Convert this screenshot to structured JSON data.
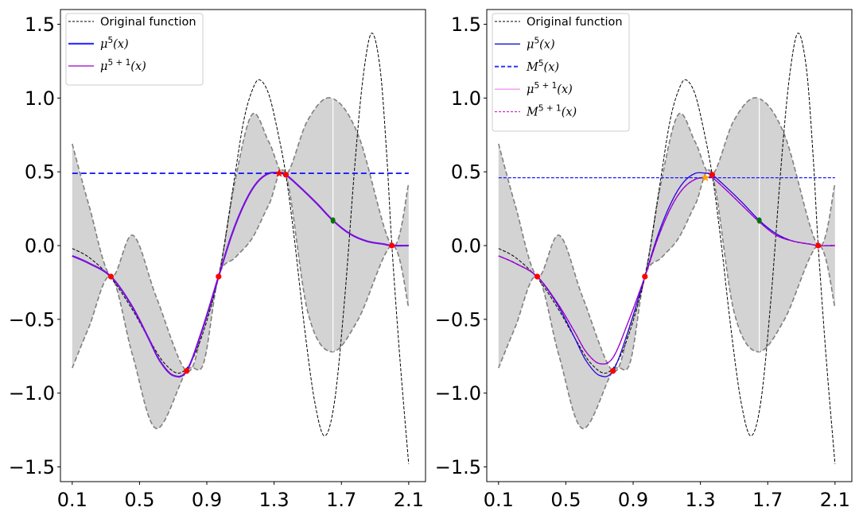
{
  "chart_data": [
    {
      "type": "line",
      "panel": "left",
      "title": "",
      "xlabel": "",
      "ylabel": "",
      "xlim": [
        0.03,
        2.2
      ],
      "ylim": [
        -1.6,
        1.6
      ],
      "xticks": [
        0.1,
        0.5,
        0.9,
        1.3,
        1.7,
        2.1
      ],
      "xtick_labels": [
        "0.1",
        "0.5",
        "0.9",
        "1.3",
        "1.7",
        "2.1"
      ],
      "yticks": [
        1.5,
        1.0,
        0.5,
        0.0,
        -0.5,
        -1.0,
        -1.5
      ],
      "ytick_labels": [
        "1.5",
        "1.0",
        "0.5",
        "0.0",
        "−0.5",
        "−1.0",
        "−1.5"
      ],
      "grid": false,
      "legend_position": "top-left",
      "legend": [
        {
          "label": "Original function",
          "base": "Original function",
          "sup": "",
          "suffix": "",
          "math": false,
          "color": "#000000",
          "style": "dashed-thin"
        },
        {
          "label": "μ5(x)",
          "base": "μ",
          "sup": "5",
          "suffix": "(x)",
          "math": true,
          "color": "#3333ff",
          "style": "solid-thick"
        },
        {
          "label": "μ5 + 1(x)",
          "base": "μ",
          "sup": "5 + 1",
          "suffix": "(x)",
          "math": true,
          "color": "#9900cc",
          "style": "solid-thin"
        }
      ],
      "band": {
        "color": "#d3d3d3",
        "edge_color": "#808080",
        "x": [
          0.1,
          0.2,
          0.33,
          0.46,
          0.6,
          0.78,
          0.88,
          0.97,
          1.07,
          1.17,
          1.27,
          1.37,
          1.5,
          1.64,
          1.8,
          2.0,
          2.1
        ],
        "upper": [
          0.69,
          0.27,
          -0.21,
          0.07,
          -0.35,
          -0.85,
          -0.55,
          -0.21,
          0.45,
          0.89,
          0.7,
          0.48,
          0.85,
          1.0,
          0.75,
          0.0,
          0.42
        ],
        "lower": [
          -0.83,
          -0.55,
          -0.21,
          -0.75,
          -1.24,
          -0.85,
          -0.8,
          -0.21,
          -0.08,
          0.05,
          0.28,
          0.48,
          -0.45,
          -0.72,
          -0.5,
          0.0,
          -0.42
        ]
      },
      "vline_x": 1.65,
      "series": [
        {
          "name": "Original function",
          "color": "#000000",
          "dash": "4,2",
          "width": 1,
          "x": [
            0.1,
            0.2,
            0.33,
            0.45,
            0.55,
            0.65,
            0.75,
            0.85,
            0.97,
            1.05,
            1.12,
            1.18,
            1.22,
            1.27,
            1.32,
            1.37,
            1.42,
            1.48,
            1.54,
            1.6,
            1.66,
            1.72,
            1.78,
            1.83,
            1.88,
            1.93,
            1.97,
            2.0,
            2.05,
            2.1
          ],
          "y": [
            -0.02,
            -0.08,
            -0.22,
            -0.42,
            -0.62,
            -0.8,
            -0.86,
            -0.68,
            -0.21,
            0.35,
            0.85,
            1.08,
            1.12,
            1.02,
            0.78,
            0.48,
            0.05,
            -0.55,
            -1.05,
            -1.29,
            -1.05,
            -0.35,
            0.55,
            1.15,
            1.44,
            1.2,
            0.6,
            0.0,
            -0.8,
            -1.48
          ]
        },
        {
          "name": "mu5",
          "color": "#3333ff",
          "dash": "",
          "width": 2.2,
          "x": [
            0.1,
            0.2,
            0.33,
            0.45,
            0.55,
            0.62,
            0.7,
            0.78,
            0.87,
            0.97,
            1.05,
            1.13,
            1.2,
            1.27,
            1.33,
            1.37,
            1.45,
            1.55,
            1.65,
            1.75,
            1.85,
            1.95,
            2.0,
            2.1
          ],
          "y": [
            -0.07,
            -0.12,
            -0.21,
            -0.4,
            -0.62,
            -0.78,
            -0.88,
            -0.85,
            -0.58,
            -0.21,
            0.08,
            0.3,
            0.43,
            0.49,
            0.49,
            0.48,
            0.4,
            0.29,
            0.17,
            0.08,
            0.03,
            0.01,
            0.0,
            0.0
          ]
        },
        {
          "name": "mu5+1",
          "color": "#9900cc",
          "dash": "",
          "width": 1.5,
          "x": [
            0.1,
            0.2,
            0.33,
            0.45,
            0.55,
            0.62,
            0.7,
            0.78,
            0.87,
            0.97,
            1.05,
            1.13,
            1.2,
            1.27,
            1.33,
            1.37,
            1.45,
            1.55,
            1.65,
            1.75,
            1.85,
            1.95,
            2.0,
            2.1
          ],
          "y": [
            -0.07,
            -0.12,
            -0.21,
            -0.4,
            -0.62,
            -0.78,
            -0.88,
            -0.85,
            -0.58,
            -0.21,
            0.08,
            0.3,
            0.43,
            0.49,
            0.49,
            0.48,
            0.4,
            0.29,
            0.17,
            0.08,
            0.03,
            0.01,
            0.0,
            0.0
          ]
        },
        {
          "name": "M5",
          "color": "#1a1aff",
          "dash": "7,4",
          "width": 1.8,
          "x": [
            0.1,
            2.1
          ],
          "y": [
            0.49,
            0.49
          ]
        }
      ],
      "observations": {
        "color": "#ff0000",
        "x": [
          0.33,
          0.78,
          0.97,
          1.37,
          2.0
        ],
        "y": [
          -0.21,
          -0.85,
          -0.21,
          0.48,
          0.0
        ]
      },
      "star": {
        "color": "#ff0000",
        "x": 1.33,
        "y": 0.49
      },
      "new_point": {
        "color": "#007700",
        "x": 1.65,
        "y": 0.17
      }
    },
    {
      "type": "line",
      "panel": "right",
      "title": "",
      "xlabel": "",
      "ylabel": "",
      "xlim": [
        0.03,
        2.2
      ],
      "ylim": [
        -1.6,
        1.6
      ],
      "xticks": [
        0.1,
        0.5,
        0.9,
        1.3,
        1.7,
        2.1
      ],
      "xtick_labels": [
        "0.1",
        "0.5",
        "0.9",
        "1.3",
        "1.7",
        "2.1"
      ],
      "yticks": [
        1.5,
        1.0,
        0.5,
        0.0,
        -0.5,
        -1.0,
        -1.5
      ],
      "ytick_labels": [
        "1.5",
        "1.0",
        "0.5",
        "0.0",
        "−0.5",
        "−1.0",
        "−1.5"
      ],
      "grid": false,
      "legend_position": "top-left",
      "legend": [
        {
          "label": "Original function",
          "base": "Original function",
          "sup": "",
          "suffix": "",
          "math": false,
          "color": "#000000",
          "style": "dashed-thin"
        },
        {
          "label": "μ5(x)",
          "base": "μ",
          "sup": "5",
          "suffix": "(x)",
          "math": true,
          "color": "#0000cc",
          "style": "solid-thin"
        },
        {
          "label": "M5(x)",
          "base": "M",
          "sup": "5",
          "suffix": "(x)",
          "math": true,
          "color": "#3333ff",
          "style": "dashed-thick"
        },
        {
          "label": "μ5 + 1(x)",
          "base": "μ",
          "sup": "5 + 1",
          "suffix": "(x)",
          "math": true,
          "color": "#ee82ee",
          "style": "solid-thin"
        },
        {
          "label": "M5 + 1(x)",
          "base": "M",
          "sup": "5 + 1",
          "suffix": "(x)",
          "math": true,
          "color": "#cc00cc",
          "style": "dashed-thin"
        }
      ],
      "band": {
        "color": "#d3d3d3",
        "edge_color": "#808080",
        "x": [
          0.1,
          0.2,
          0.33,
          0.46,
          0.6,
          0.78,
          0.88,
          0.97,
          1.07,
          1.17,
          1.27,
          1.37,
          1.5,
          1.64,
          1.8,
          2.0,
          2.1
        ],
        "upper": [
          0.69,
          0.27,
          -0.21,
          0.07,
          -0.35,
          -0.85,
          -0.55,
          -0.21,
          0.45,
          0.89,
          0.7,
          0.48,
          0.85,
          1.0,
          0.75,
          0.0,
          0.42
        ],
        "lower": [
          -0.83,
          -0.55,
          -0.21,
          -0.75,
          -1.24,
          -0.85,
          -0.8,
          -0.21,
          -0.08,
          0.05,
          0.28,
          0.48,
          -0.45,
          -0.72,
          -0.5,
          0.0,
          -0.42
        ]
      },
      "vline_x": 1.65,
      "series": [
        {
          "name": "Original function",
          "color": "#000000",
          "dash": "4,2",
          "width": 1,
          "x": [
            0.1,
            0.2,
            0.33,
            0.45,
            0.55,
            0.65,
            0.75,
            0.85,
            0.97,
            1.05,
            1.12,
            1.18,
            1.22,
            1.27,
            1.32,
            1.37,
            1.42,
            1.48,
            1.54,
            1.6,
            1.66,
            1.72,
            1.78,
            1.83,
            1.88,
            1.93,
            1.97,
            2.0,
            2.05,
            2.1
          ],
          "y": [
            -0.02,
            -0.08,
            -0.22,
            -0.42,
            -0.62,
            -0.8,
            -0.86,
            -0.68,
            -0.21,
            0.35,
            0.85,
            1.08,
            1.12,
            1.02,
            0.78,
            0.48,
            0.05,
            -0.55,
            -1.05,
            -1.29,
            -1.05,
            -0.35,
            0.55,
            1.15,
            1.44,
            1.2,
            0.6,
            0.0,
            -0.8,
            -1.48
          ]
        },
        {
          "name": "mu5",
          "color": "#2b00e0",
          "dash": "",
          "width": 1.3,
          "x": [
            0.1,
            0.2,
            0.33,
            0.45,
            0.55,
            0.62,
            0.7,
            0.78,
            0.87,
            0.97,
            1.05,
            1.13,
            1.2,
            1.27,
            1.33,
            1.37,
            1.45,
            1.55,
            1.65,
            1.75,
            1.85,
            1.95,
            2.0,
            2.1
          ],
          "y": [
            -0.07,
            -0.12,
            -0.21,
            -0.4,
            -0.62,
            -0.78,
            -0.88,
            -0.85,
            -0.58,
            -0.21,
            0.08,
            0.3,
            0.43,
            0.49,
            0.49,
            0.48,
            0.4,
            0.29,
            0.17,
            0.08,
            0.03,
            0.01,
            0.0,
            0.0
          ]
        },
        {
          "name": "mu5+1",
          "color": "#6a00d0",
          "dash": "",
          "width": 1.3,
          "x": [
            0.1,
            0.2,
            0.33,
            0.45,
            0.55,
            0.62,
            0.7,
            0.78,
            0.87,
            0.97,
            1.05,
            1.13,
            1.2,
            1.27,
            1.33,
            1.37,
            1.45,
            1.55,
            1.65,
            1.75,
            1.85,
            1.95,
            2.0,
            2.1
          ],
          "y": [
            -0.07,
            -0.12,
            -0.21,
            -0.39,
            -0.58,
            -0.72,
            -0.8,
            -0.76,
            -0.52,
            -0.21,
            0.06,
            0.27,
            0.39,
            0.45,
            0.46,
            0.46,
            0.38,
            0.27,
            0.16,
            0.07,
            0.03,
            0.01,
            0.0,
            0.0
          ]
        },
        {
          "name": "M5+1",
          "color": "#cc00cc",
          "dash": "4,3",
          "width": 1.2,
          "x": [
            0.1,
            0.2,
            0.33,
            0.45,
            0.55,
            0.62,
            0.7,
            0.78,
            0.87,
            0.97,
            1.05,
            1.13,
            1.2,
            1.27,
            1.33,
            1.37,
            1.45,
            1.55,
            1.65,
            1.75,
            1.85,
            1.95,
            2.0,
            2.1
          ],
          "y": [
            -0.07,
            -0.12,
            -0.21,
            -0.39,
            -0.58,
            -0.72,
            -0.8,
            -0.76,
            -0.52,
            -0.21,
            0.06,
            0.27,
            0.39,
            0.45,
            0.46,
            0.46,
            0.38,
            0.27,
            0.16,
            0.07,
            0.03,
            0.01,
            0.0,
            0.0
          ]
        },
        {
          "name": "M5",
          "color": "#1a1aff",
          "dash": "4,2",
          "width": 1.2,
          "x": [
            0.1,
            2.1
          ],
          "y": [
            0.46,
            0.46
          ]
        }
      ],
      "observations": {
        "color": "#ff0000",
        "x": [
          0.33,
          0.78,
          0.97,
          1.37,
          2.0
        ],
        "y": [
          -0.21,
          -0.85,
          -0.21,
          0.48,
          0.0
        ]
      },
      "star": {
        "color": "#ffa500",
        "x": 1.33,
        "y": 0.46
      },
      "new_point": {
        "color": "#007700",
        "x": 1.65,
        "y": 0.17
      }
    }
  ]
}
